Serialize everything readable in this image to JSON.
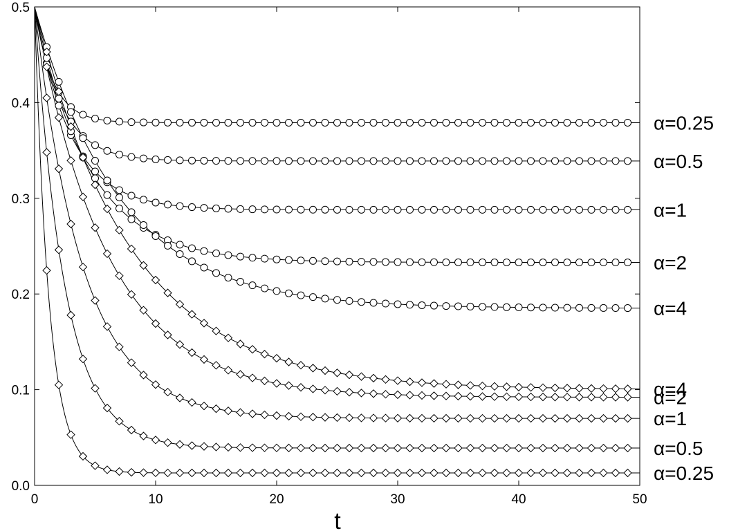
{
  "chart_data": {
    "type": "line",
    "title": "",
    "xlabel": "t",
    "ylabel": "",
    "xlim": [
      0,
      50
    ],
    "ylim": [
      0.0,
      0.5
    ],
    "xticks": [
      "0",
      "10",
      "20",
      "30",
      "40",
      "50"
    ],
    "yticks": [
      "0.0",
      "0.1",
      "0.2",
      "0.3",
      "0.4",
      "0.5"
    ],
    "grid": false,
    "marker_start": 1,
    "marker_end": 49,
    "marker_step": 1,
    "series": [
      {
        "label": "α=0.25",
        "marker": "circle",
        "y_start": 0.5,
        "y_inf": 0.379,
        "tau": 1.5
      },
      {
        "label": "α=0.5",
        "marker": "circle",
        "y_start": 0.5,
        "y_inf": 0.339,
        "tau": 2.2
      },
      {
        "label": "α=1",
        "marker": "circle",
        "y_start": 0.5,
        "y_inf": 0.288,
        "tau": 3.0
      },
      {
        "label": "α=2",
        "marker": "circle",
        "y_start": 0.5,
        "y_inf": 0.233,
        "tau": 4.5
      },
      {
        "label": "α=4",
        "marker": "circle",
        "y_start": 0.5,
        "y_inf": 0.185,
        "tau": 7.0
      },
      {
        "label": "α=4",
        "marker": "diamond",
        "y_start": 0.5,
        "y_inf": 0.1,
        "tau": 8.0
      },
      {
        "label": "α=2",
        "marker": "diamond",
        "y_start": 0.5,
        "y_inf": 0.092,
        "tau": 6.0
      },
      {
        "label": "α=1",
        "marker": "diamond",
        "y_start": 0.5,
        "y_inf": 0.07,
        "tau": 4.0
      },
      {
        "label": "α=0.5",
        "marker": "diamond",
        "y_start": 0.5,
        "y_inf": 0.039,
        "tau": 2.5
      },
      {
        "label": "α=0.25",
        "marker": "diamond",
        "y_start": 0.5,
        "y_inf": 0.013,
        "tau": 1.2
      }
    ]
  }
}
